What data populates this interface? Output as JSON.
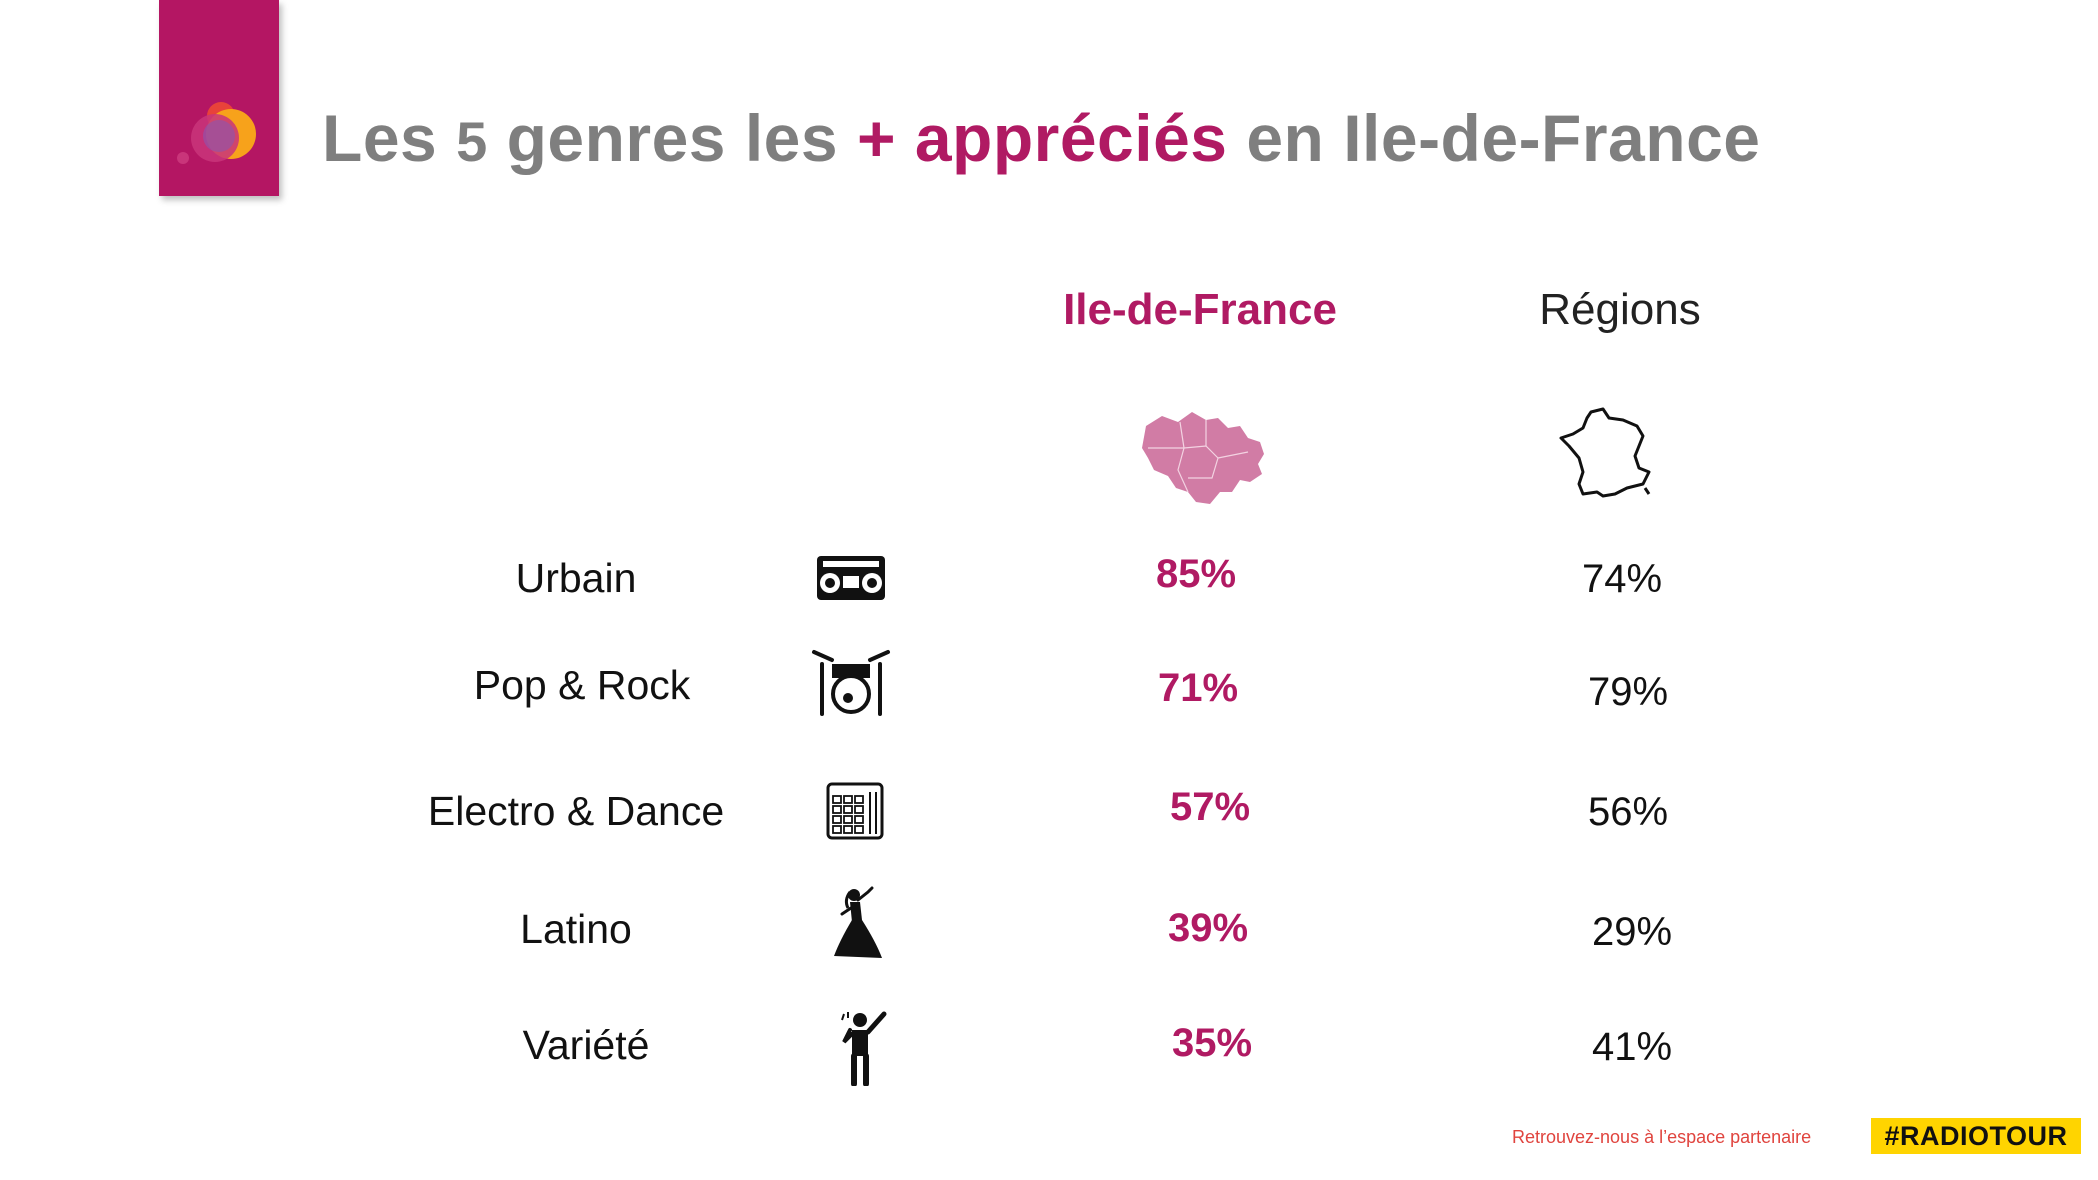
{
  "header": {
    "title_part1": "Les ",
    "title_number": "5",
    "title_part2": " genres les ",
    "title_accent": "+ appréciés",
    "title_part3": " en Ile-de-France"
  },
  "columns": {
    "idf": "Ile-de-France",
    "regions": "Régions"
  },
  "rows": [
    {
      "genre": "Urbain",
      "icon": "boombox-icon",
      "idf": "85%",
      "regions": "74%"
    },
    {
      "genre": "Pop & Rock",
      "icon": "drum-kit-icon",
      "idf": "71%",
      "regions": "79%"
    },
    {
      "genre": "Electro & Dance",
      "icon": "drum-pad-icon",
      "idf": "57%",
      "regions": "56%"
    },
    {
      "genre": "Latino",
      "icon": "latin-dancer-icon",
      "idf": "39%",
      "regions": "29%"
    },
    {
      "genre": "Variété",
      "icon": "singer-icon",
      "idf": "35%",
      "regions": "41%"
    }
  ],
  "footer": {
    "text": "Retrouvez-nous à l’espace partenaire",
    "tag": "#RADIOTOUR"
  },
  "colors": {
    "accent": "#b01a63",
    "logo_bg": "#b41663",
    "tag_bg": "#ffd400"
  }
}
